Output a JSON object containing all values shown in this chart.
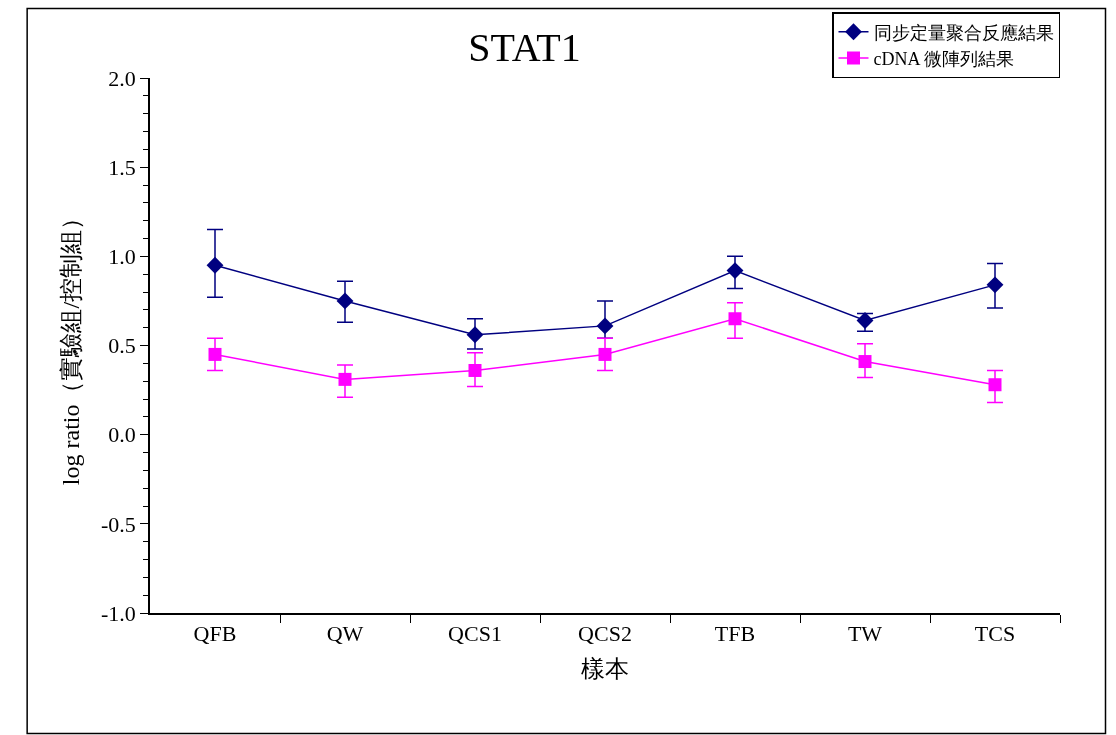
{
  "chart_data": {
    "type": "line",
    "title": "STAT1",
    "xlabel": "樣本",
    "ylabel": "log ratio（實驗組/控制組）",
    "categories": [
      "QFB",
      "QW",
      "QCS1",
      "QCS2",
      "TFB",
      "TW",
      "TCS"
    ],
    "series": [
      {
        "name": "同步定量聚合反應結果",
        "color": "#000080",
        "marker": "diamond",
        "values": [
          0.95,
          0.75,
          0.56,
          0.61,
          0.92,
          0.64,
          0.84
        ],
        "errors": [
          [
            0.77,
            1.15
          ],
          [
            0.63,
            0.86
          ],
          [
            0.48,
            0.65
          ],
          [
            0.54,
            0.75
          ],
          [
            0.82,
            1.0
          ],
          [
            0.58,
            0.68
          ],
          [
            0.71,
            0.96
          ]
        ]
      },
      {
        "name": "cDNA 微陣列結果",
        "color": "#ff00ff",
        "marker": "square",
        "values": [
          0.45,
          0.31,
          0.36,
          0.45,
          0.65,
          0.41,
          0.28
        ],
        "errors": [
          [
            0.36,
            0.54
          ],
          [
            0.21,
            0.39
          ],
          [
            0.27,
            0.46
          ],
          [
            0.36,
            0.54
          ],
          [
            0.54,
            0.74
          ],
          [
            0.32,
            0.51
          ],
          [
            0.18,
            0.36
          ]
        ]
      }
    ],
    "ylim": [
      -1.0,
      2.0
    ],
    "yticks": [
      {
        "value": -1.0,
        "label": "-1.0"
      },
      {
        "value": -0.5,
        "label": "-0.5"
      },
      {
        "value": 0.0,
        "label": "0.0"
      },
      {
        "value": 0.5,
        "label": "0.5"
      },
      {
        "value": 1.0,
        "label": "1.0"
      },
      {
        "value": 1.5,
        "label": "1.5"
      },
      {
        "value": 2.0,
        "label": "2.0"
      }
    ],
    "legend": "top right",
    "line_style": "solid"
  }
}
